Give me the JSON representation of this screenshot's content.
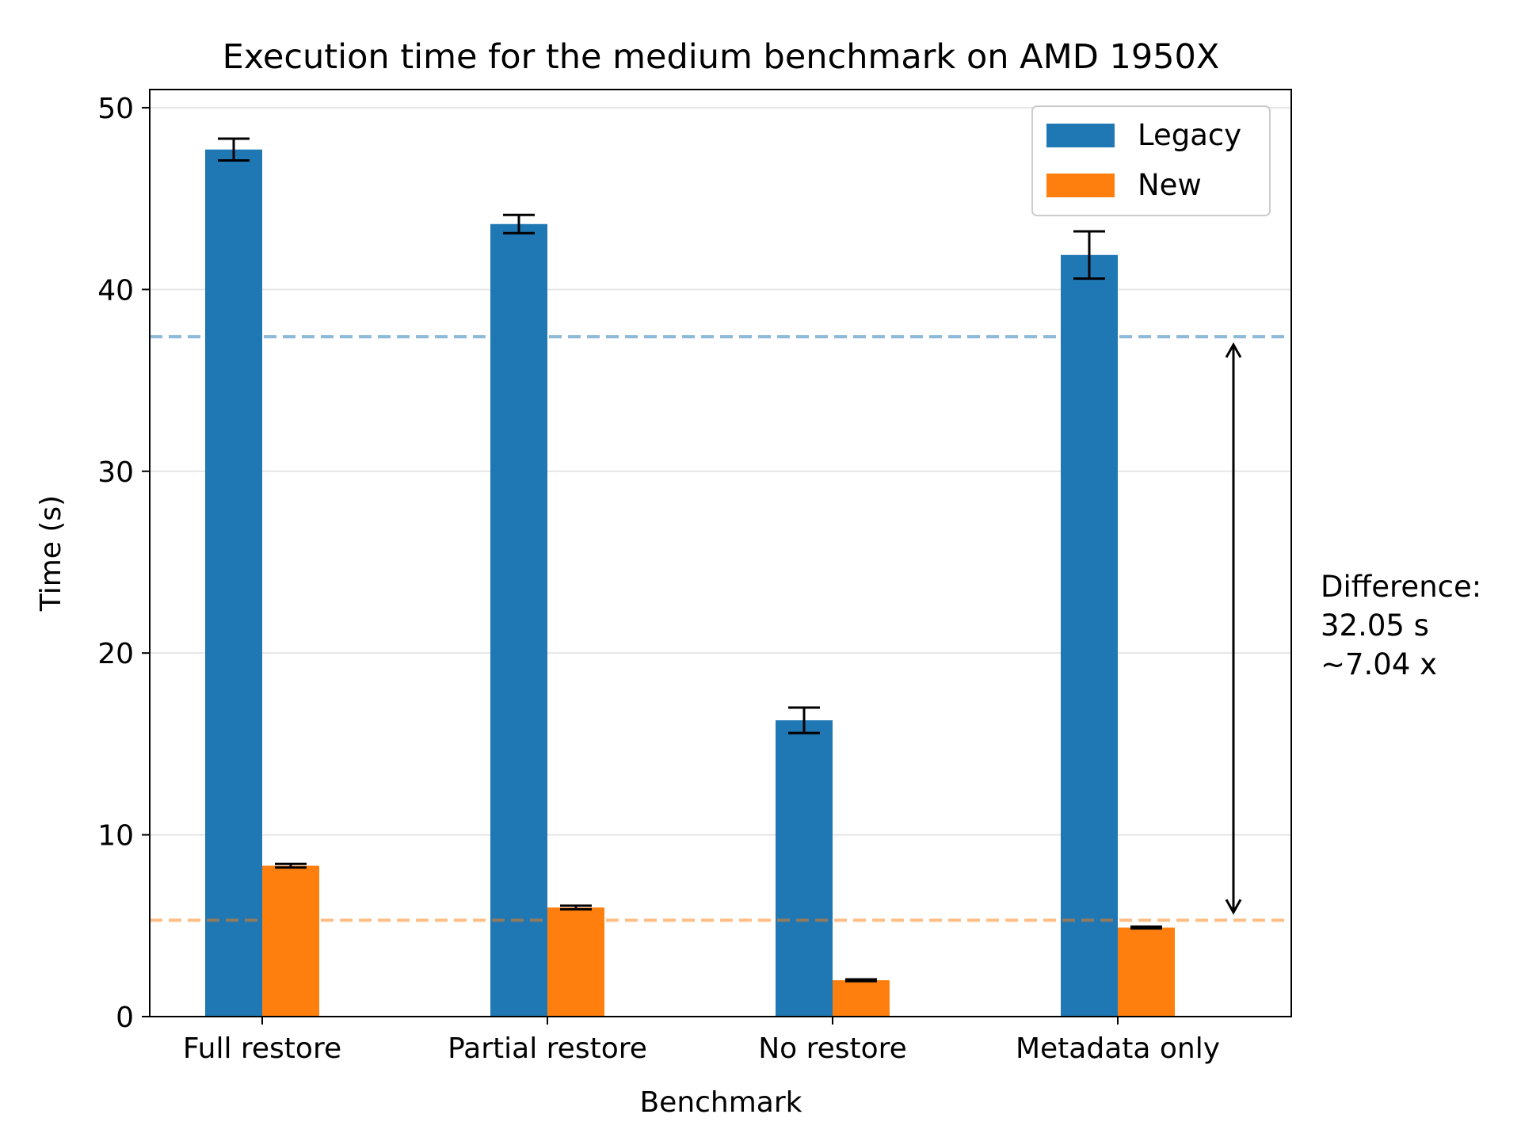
{
  "chart_data": {
    "type": "bar",
    "title": "Execution time for the medium benchmark on AMD 1950X",
    "xlabel": "Benchmark",
    "ylabel": "Time (s)",
    "categories": [
      "Full restore",
      "Partial restore",
      "No restore",
      "Metadata only"
    ],
    "ylim": [
      0,
      51
    ],
    "yticks": [
      0,
      10,
      20,
      30,
      40,
      50
    ],
    "grid": "horizontal",
    "legend_position": "top-right",
    "series": [
      {
        "name": "Legacy",
        "color": "#1f77b4",
        "values": [
          47.7,
          43.6,
          16.3,
          41.9
        ],
        "errors": [
          0.6,
          0.5,
          0.7,
          1.3
        ],
        "mean_line": 37.4
      },
      {
        "name": "New",
        "color": "#ff7f0e",
        "values": [
          8.3,
          6.0,
          2.0,
          4.9
        ],
        "errors": [
          0.1,
          0.1,
          0.05,
          0.05
        ],
        "mean_line": 5.3
      }
    ],
    "annotation": {
      "lines": [
        "Difference:",
        "32.05 s",
        "~7.04 x"
      ],
      "arrow_from": 37.4,
      "arrow_to": 5.3
    }
  }
}
